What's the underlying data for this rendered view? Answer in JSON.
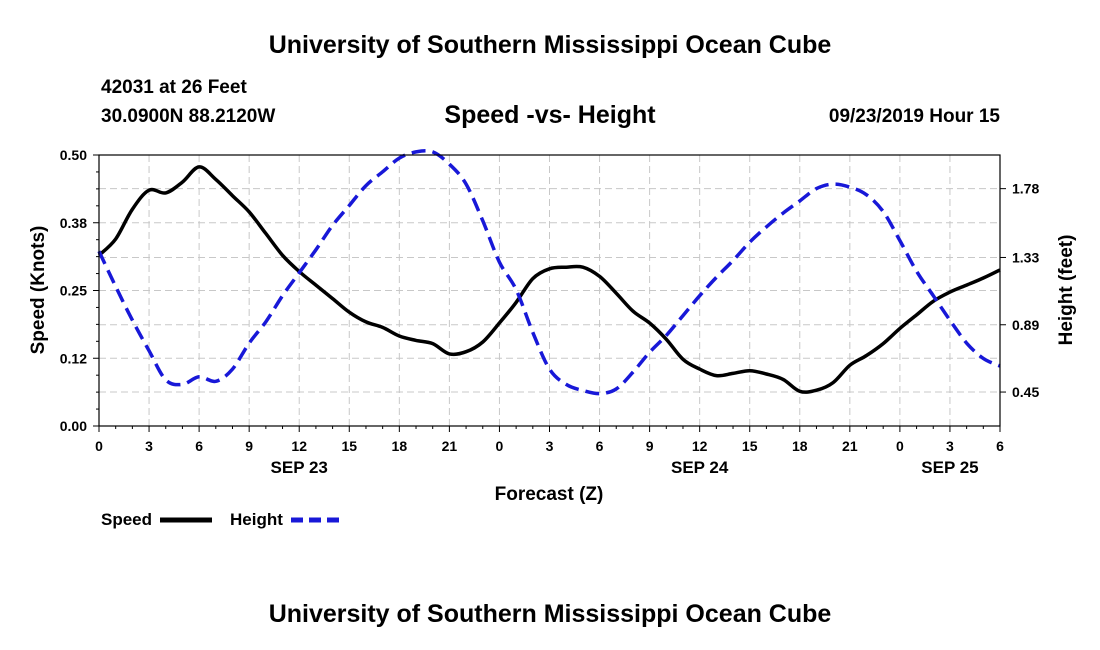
{
  "page": {
    "top_title": "University of Southern Mississippi Ocean Cube",
    "bottom_title": "University of Southern Mississippi Ocean Cube",
    "station_line": "42031 at 26 Feet",
    "position_line": "30.0900N 88.2120W",
    "datetime": "09/23/2019 Hour 15"
  },
  "chart_data": {
    "type": "line",
    "title": "Speed -vs- Height",
    "xlabel": "Forecast (Z)",
    "ylabel_left": "Speed (Knots)",
    "ylabel_right": "Height (feet)",
    "x_range": [
      0,
      54
    ],
    "x_tick_labels": [
      "0",
      "3",
      "6",
      "9",
      "12",
      "15",
      "18",
      "21",
      "0",
      "3",
      "6",
      "9",
      "12",
      "15",
      "18",
      "21",
      "0",
      "3",
      "6"
    ],
    "date_labels": [
      {
        "label": "SEP 23",
        "x": 12
      },
      {
        "label": "SEP 24",
        "x": 36
      },
      {
        "label": "SEP 25",
        "x": 51
      }
    ],
    "y_left": {
      "range": [
        0,
        0.5
      ],
      "ticks": [
        "0.00",
        "0.12",
        "0.25",
        "0.38",
        "0.50"
      ]
    },
    "y_right": {
      "range": [
        0.228,
        2.0
      ],
      "ticks": [
        "0.45",
        "0.89",
        "1.33",
        "1.78"
      ]
    },
    "grid": true,
    "colors": {
      "speed": "#000000",
      "height": "#1818d8"
    },
    "series": [
      {
        "name": "Speed",
        "axis": "left",
        "style": "solid",
        "x": [
          0,
          1,
          2,
          3,
          4,
          5,
          6,
          7,
          8,
          9,
          10,
          11,
          12,
          13,
          14,
          15,
          16,
          17,
          18,
          19,
          20,
          21,
          22,
          23,
          24,
          25,
          26,
          27,
          28,
          29,
          30,
          31,
          32,
          33,
          34,
          35,
          36,
          37,
          38,
          39,
          40,
          41,
          42,
          43,
          44,
          45,
          46,
          47,
          48,
          49,
          50,
          51,
          52,
          53,
          54
        ],
        "values": [
          0.315,
          0.345,
          0.4,
          0.435,
          0.43,
          0.45,
          0.478,
          0.455,
          0.425,
          0.395,
          0.355,
          0.315,
          0.285,
          0.26,
          0.235,
          0.21,
          0.192,
          0.182,
          0.166,
          0.158,
          0.152,
          0.133,
          0.137,
          0.155,
          0.19,
          0.228,
          0.272,
          0.29,
          0.293,
          0.293,
          0.276,
          0.245,
          0.212,
          0.19,
          0.16,
          0.123,
          0.105,
          0.093,
          0.097,
          0.102,
          0.096,
          0.086,
          0.064,
          0.066,
          0.08,
          0.112,
          0.13,
          0.152,
          0.18,
          0.205,
          0.23,
          0.247,
          0.26,
          0.273,
          0.288
        ]
      },
      {
        "name": "Height",
        "axis": "right",
        "style": "dashed",
        "x": [
          0,
          1,
          2,
          3,
          4,
          5,
          6,
          7,
          8,
          9,
          10,
          11,
          12,
          13,
          14,
          15,
          16,
          17,
          18,
          19,
          20,
          21,
          22,
          23,
          24,
          25,
          26,
          27,
          28,
          29,
          30,
          31,
          32,
          33,
          34,
          35,
          36,
          37,
          38,
          39,
          40,
          41,
          42,
          43,
          44,
          45,
          46,
          47,
          48,
          49,
          50,
          51,
          52,
          53,
          54
        ],
        "values": [
          1.37,
          1.14,
          0.92,
          0.72,
          0.53,
          0.5,
          0.55,
          0.52,
          0.6,
          0.77,
          0.91,
          1.08,
          1.23,
          1.38,
          1.54,
          1.67,
          1.8,
          1.89,
          1.98,
          2.02,
          2.02,
          1.94,
          1.81,
          1.57,
          1.3,
          1.12,
          0.84,
          0.6,
          0.5,
          0.46,
          0.44,
          0.47,
          0.58,
          0.71,
          0.82,
          0.95,
          1.08,
          1.2,
          1.31,
          1.43,
          1.53,
          1.62,
          1.7,
          1.78,
          1.81,
          1.79,
          1.74,
          1.63,
          1.44,
          1.24,
          1.08,
          0.92,
          0.77,
          0.67,
          0.62
        ]
      }
    ],
    "legend": {
      "speed_label": "Speed",
      "height_label": "Height"
    }
  }
}
